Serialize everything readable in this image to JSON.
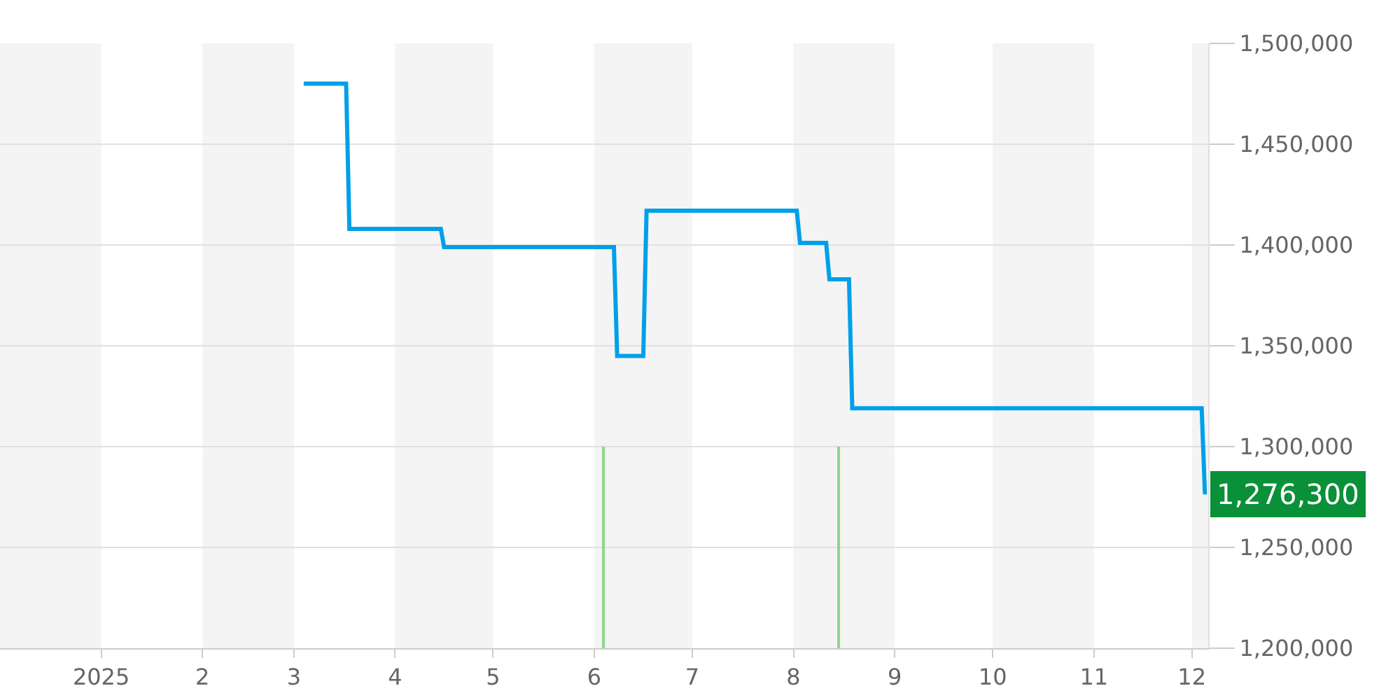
{
  "chart_data": {
    "type": "line",
    "series": [
      {
        "color": "#00a0e9",
        "x": [
          "2025-03-04",
          "2025-03-17",
          "2025-03-18",
          "2025-04-15",
          "2025-04-16",
          "2025-06-07",
          "2025-06-08",
          "2025-06-16",
          "2025-06-17",
          "2025-08-02",
          "2025-08-03",
          "2025-08-11",
          "2025-08-12",
          "2025-08-18",
          "2025-08-19",
          "2025-12-04",
          "2025-12-05"
        ],
        "values": [
          1480000,
          1480000,
          1408000,
          1408000,
          1399000,
          1399000,
          1345000,
          1345000,
          1417000,
          1417000,
          1401000,
          1401000,
          1383000,
          1383000,
          1319000,
          1319000,
          1276300
        ]
      },
      {
        "type": "bar",
        "color": "#8fd68f",
        "x": [
          "2025-06-04",
          "2025-08-15"
        ],
        "base": [
          1200000,
          1200000
        ],
        "values": [
          100000,
          100000
        ]
      }
    ],
    "xlim": [
      "2024-12-01",
      "2025-12-06"
    ],
    "xticks": [
      {
        "value": "2025-01-01",
        "label": "2025"
      },
      {
        "value": "2025-02-01",
        "label": "2"
      },
      {
        "value": "2025-03-01",
        "label": "3"
      },
      {
        "value": "2025-04-01",
        "label": "4"
      },
      {
        "value": "2025-05-01",
        "label": "5"
      },
      {
        "value": "2025-06-01",
        "label": "6"
      },
      {
        "value": "2025-07-01",
        "label": "7"
      },
      {
        "value": "2025-08-01",
        "label": "8"
      },
      {
        "value": "2025-09-01",
        "label": "9"
      },
      {
        "value": "2025-10-01",
        "label": "10"
      },
      {
        "value": "2025-11-01",
        "label": "11"
      },
      {
        "value": "2025-12-01",
        "label": "12"
      }
    ],
    "ylim": [
      1200000,
      1500000
    ],
    "yticks": [
      {
        "value": 1200000,
        "label": "1,200,000"
      },
      {
        "value": 1250000,
        "label": "1,250,000"
      },
      {
        "value": 1300000,
        "label": "1,300,000"
      },
      {
        "value": 1350000,
        "label": "1,350,000"
      },
      {
        "value": 1400000,
        "label": "1,400,000"
      },
      {
        "value": 1450000,
        "label": "1,450,000"
      },
      {
        "value": 1500000,
        "label": "1,500,000"
      }
    ],
    "bands": [
      {
        "axis": "x",
        "from": "2024-12-01",
        "to": "2025-01-01",
        "color": "#f4f4f4"
      },
      {
        "axis": "x",
        "from": "2025-02-01",
        "to": "2025-03-01",
        "color": "#f4f4f4"
      },
      {
        "axis": "x",
        "from": "2025-04-01",
        "to": "2025-05-01",
        "color": "#f4f4f4"
      },
      {
        "axis": "x",
        "from": "2025-06-01",
        "to": "2025-07-01",
        "color": "#f4f4f4"
      },
      {
        "axis": "x",
        "from": "2025-08-01",
        "to": "2025-09-01",
        "color": "#f4f4f4"
      },
      {
        "axis": "x",
        "from": "2025-10-01",
        "to": "2025-11-01",
        "color": "#f4f4f4"
      },
      {
        "axis": "x",
        "from": "2025-12-01",
        "to": "2025-12-06",
        "color": "#f4f4f4"
      }
    ],
    "annotations": [
      {
        "text": "1,276,300",
        "x": "2025-12-05",
        "y": 1276300
      }
    ],
    "grid": "y",
    "marker": "none",
    "line_style": "solid"
  }
}
